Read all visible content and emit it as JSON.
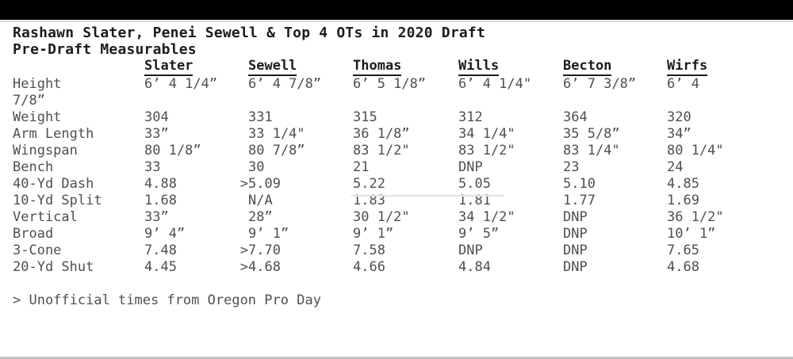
{
  "title": "Rashawn Slater, Penei Sewell & Top 4 OTs in 2020 Draft",
  "subtitle": "Pre-Draft Measurables",
  "table": {
    "columns": [
      "Slater",
      "Sewell",
      "Thomas",
      "Wills",
      "Becton",
      "Wirfs"
    ],
    "rows": [
      {
        "label": "Height",
        "values": [
          "6’ 4 1/4”",
          "6’ 4 7/8”",
          "6’ 5 1/8”",
          "6’ 4 1/4\"",
          "6’ 7 3/8”",
          "6’ 4"
        ],
        "wrap": "7/8”"
      },
      {
        "label": "Weight",
        "values": [
          "304",
          "331",
          "315",
          "312",
          "364",
          "320"
        ]
      },
      {
        "label": "Arm Length",
        "values": [
          "33”",
          "33 1/4\"",
          "36 1/8”",
          "34 1/4\"",
          "35 5/8”",
          "34”"
        ]
      },
      {
        "label": "Wingspan",
        "values": [
          "80 1/8”",
          "80 7/8”",
          "83 1/2\"",
          "83 1/2\"",
          "83 1/4\"",
          "80 1/4\""
        ]
      },
      {
        "label": "Bench",
        "values": [
          "33",
          "30",
          "21",
          "DNP",
          "23",
          "24"
        ]
      },
      {
        "label": "40-Yd Dash",
        "values": [
          "4.88",
          ">5.09",
          "5.22",
          "5.05",
          "5.10",
          "4.85"
        ]
      },
      {
        "label": "10-Yd Split",
        "values": [
          "1.68",
          "N/A",
          "1.83",
          "1.81",
          "1.77",
          "1.69"
        ]
      },
      {
        "label": "Vertical",
        "values": [
          "33”",
          "28”",
          "30 1/2\"",
          "34 1/2\"",
          "DNP",
          "36 1/2\""
        ]
      },
      {
        "label": "Broad",
        "values": [
          "9’ 4”",
          "9’ 1”",
          "9’ 1”",
          "9’ 5”",
          "DNP",
          "10’ 1”"
        ]
      },
      {
        "label": "3-Cone",
        "values": [
          "7.48",
          ">7.70",
          "7.58",
          "DNP",
          "DNP",
          "7.65"
        ]
      },
      {
        "label": "20-Yd Shut",
        "values": [
          "4.45",
          ">4.68",
          "4.66",
          "4.84",
          "DNP",
          "4.68"
        ]
      }
    ]
  },
  "footnote": "> Unofficial times from Oregon Pro Day",
  "colors": {
    "topbar": "#000000",
    "background": "#ffffff",
    "text_primary": "#1c1c1c",
    "text_secondary": "#4f4f4f",
    "divider_top": "#d9d9d9",
    "divider_bottom": "#c2c2c2",
    "faint_underline": "#e2e2e2"
  }
}
